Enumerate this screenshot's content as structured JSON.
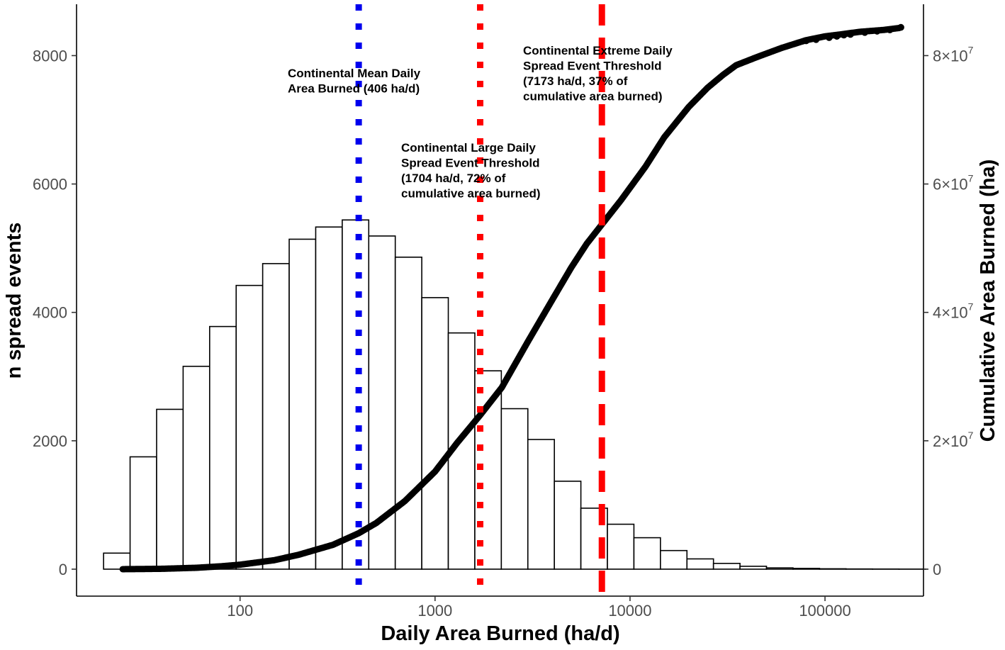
{
  "chart_data": {
    "type": "bar",
    "xlabel": "Daily Area Burned (ha/d)",
    "ylabel": "n spread events",
    "y2label": "Cumulative Area Burned (ha)",
    "x_scale": "log10",
    "xlim": [
      14.5,
      320000
    ],
    "ylim": [
      -420,
      8800
    ],
    "y2lim": [
      -4200000,
      88000000
    ],
    "x_ticks": [
      {
        "value": 100,
        "label": "100"
      },
      {
        "value": 1000,
        "label": "1000"
      },
      {
        "value": 10000,
        "label": "10000"
      },
      {
        "value": 100000,
        "label": "100000"
      }
    ],
    "y_ticks": [
      {
        "value": 0,
        "label": "0"
      },
      {
        "value": 2000,
        "label": "2000"
      },
      {
        "value": 4000,
        "label": "4000"
      },
      {
        "value": 6000,
        "label": "6000"
      },
      {
        "value": 8000,
        "label": "8000"
      }
    ],
    "y2_ticks": [
      {
        "value": 0,
        "mantissa": "0",
        "exponent": ""
      },
      {
        "value": 20000000,
        "mantissa": "2×10",
        "exponent": "7"
      },
      {
        "value": 40000000,
        "mantissa": "4×10",
        "exponent": "7"
      },
      {
        "value": 60000000,
        "mantissa": "6×10",
        "exponent": "7"
      },
      {
        "value": 80000000,
        "mantissa": "8×10",
        "exponent": "7"
      }
    ],
    "histogram": {
      "bin_log_start": 1.3,
      "bin_log_width": 0.136,
      "counts": [
        250,
        1750,
        2490,
        3160,
        3780,
        4420,
        4760,
        5140,
        5330,
        5440,
        5190,
        4860,
        4230,
        3680,
        3090,
        2500,
        2020,
        1370,
        950,
        700,
        490,
        290,
        160,
        90,
        45,
        20,
        12,
        6,
        3,
        2,
        1
      ]
    },
    "cumulative_curve": {
      "name": "Cumulative Area Burned (ha)",
      "points": [
        [
          25,
          0
        ],
        [
          30,
          20000
        ],
        [
          40,
          60000
        ],
        [
          60,
          220000
        ],
        [
          80,
          450000
        ],
        [
          100,
          700000
        ],
        [
          150,
          1400000
        ],
        [
          200,
          2250000
        ],
        [
          300,
          3800000
        ],
        [
          406,
          5600000
        ],
        [
          500,
          7200000
        ],
        [
          700,
          10600000
        ],
        [
          1000,
          15200000
        ],
        [
          1300,
          19700000
        ],
        [
          1704,
          24000000
        ],
        [
          2200,
          28300000
        ],
        [
          3000,
          35500000
        ],
        [
          4000,
          42000000
        ],
        [
          5000,
          47000000
        ],
        [
          6000,
          50700000
        ],
        [
          7173,
          53700000
        ],
        [
          9000,
          57500000
        ],
        [
          12000,
          62700000
        ],
        [
          15000,
          67300000
        ],
        [
          20000,
          72000000
        ],
        [
          25000,
          75000000
        ],
        [
          30000,
          77000000
        ],
        [
          35000,
          78500000
        ],
        [
          45000,
          79800000
        ],
        [
          60000,
          81200000
        ],
        [
          80000,
          82400000
        ],
        [
          100000,
          83000000
        ],
        [
          120000,
          83300000
        ],
        [
          150000,
          83700000
        ],
        [
          200000,
          84000000
        ],
        [
          240000,
          84300000
        ]
      ],
      "tail_points": [
        [
          80000,
          82300000
        ],
        [
          90000,
          82500000
        ],
        [
          105000,
          82800000
        ],
        [
          115000,
          83000000
        ],
        [
          125000,
          83200000
        ],
        [
          135000,
          83300000
        ],
        [
          160000,
          83600000
        ],
        [
          185000,
          83800000
        ],
        [
          215000,
          84000000
        ],
        [
          245000,
          84400000
        ]
      ]
    },
    "thresholds": [
      {
        "name": "Continental Mean Daily Area Burned",
        "value": 406,
        "color": "#0000ee",
        "style": "dotted",
        "annotation": [
          "Continental Mean Daily",
          "Area Burned (406 ha/d)"
        ]
      },
      {
        "name": "Continental Large Daily Spread Event Threshold",
        "value": 1704,
        "color": "#ff0000",
        "style": "dotted",
        "annotation": [
          "Continental Large Daily",
          "Spread Event Threshold",
          "(1704 ha/d, 72% of",
          "cumulative area burned)"
        ]
      },
      {
        "name": "Continental Extreme Daily Spread Event Threshold",
        "value": 7173,
        "color": "#ff0000",
        "style": "dashed",
        "annotation": [
          "Continental Extreme Daily",
          "Spread Event Threshold",
          "(7173 ha/d, 37% of",
          "cumulative area burned)"
        ]
      }
    ],
    "grid": false,
    "legend": "none"
  }
}
